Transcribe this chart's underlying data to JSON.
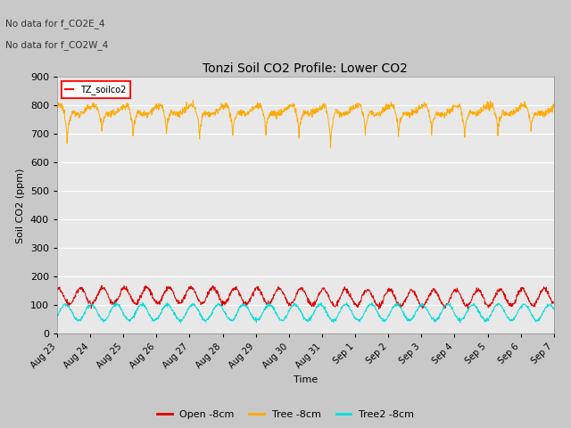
{
  "title": "Tonzi Soil CO2 Profile: Lower CO2",
  "xlabel": "Time",
  "ylabel": "Soil CO2 (ppm)",
  "ylim": [
    0,
    900
  ],
  "yticks": [
    0,
    100,
    200,
    300,
    400,
    500,
    600,
    700,
    800,
    900
  ],
  "annotations": [
    "No data for f_CO2E_4",
    "No data for f_CO2W_4"
  ],
  "legend_label": "TZ_soilco2",
  "fig_bg_color": "#c8c8c8",
  "plot_bg_color": "#e8e8e8",
  "grid_color": "#ffffff",
  "series": {
    "open": {
      "label": "Open -8cm",
      "color": "#dd0000"
    },
    "tree": {
      "label": "Tree -8cm",
      "color": "#ffaa00"
    },
    "tree2": {
      "label": "Tree2 -8cm",
      "color": "#00dddd"
    }
  },
  "n_points": 1500,
  "xtick_labels": [
    "Aug 23",
    "Aug 24",
    "Aug 25",
    "Aug 26",
    "Aug 27",
    "Aug 28",
    "Aug 29",
    "Aug 30",
    "Aug 31",
    "Sep 1",
    "Sep 2",
    "Sep 3",
    "Sep 4",
    "Sep 5",
    "Sep 6",
    "Sep 7"
  ]
}
